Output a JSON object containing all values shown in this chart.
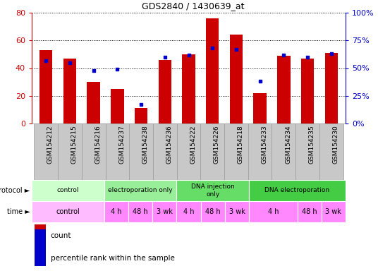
{
  "title": "GDS2840 / 1430639_at",
  "samples": [
    "GSM154212",
    "GSM154215",
    "GSM154216",
    "GSM154237",
    "GSM154238",
    "GSM154236",
    "GSM154222",
    "GSM154226",
    "GSM154218",
    "GSM154233",
    "GSM154234",
    "GSM154235",
    "GSM154230"
  ],
  "count_values": [
    53,
    47,
    30,
    25,
    11,
    46,
    50,
    76,
    64,
    22,
    49,
    47,
    51
  ],
  "percentile_values": [
    57,
    55,
    48,
    49,
    17,
    60,
    62,
    68,
    67,
    38,
    62,
    60,
    63
  ],
  "ylim_left": [
    0,
    80
  ],
  "ylim_right": [
    0,
    100
  ],
  "yticks_left": [
    0,
    20,
    40,
    60,
    80
  ],
  "yticks_right": [
    0,
    25,
    50,
    75,
    100
  ],
  "ytick_labels_left": [
    "0",
    "20",
    "40",
    "60",
    "80"
  ],
  "ytick_labels_right": [
    "0%",
    "25%",
    "50%",
    "75%",
    "100%"
  ],
  "left_axis_color": "#cc0000",
  "right_axis_color": "#0000cc",
  "bar_color": "#cc0000",
  "dot_color": "#0000cc",
  "bg_color": "#ffffff",
  "tick_bg": "#c8c8c8",
  "protocol_row": [
    {
      "label": "control",
      "span": [
        0,
        3
      ],
      "color": "#ccffcc"
    },
    {
      "label": "electroporation only",
      "span": [
        3,
        6
      ],
      "color": "#99ee99"
    },
    {
      "label": "DNA injection\nonly",
      "span": [
        6,
        9
      ],
      "color": "#66dd66"
    },
    {
      "label": "DNA electroporation",
      "span": [
        9,
        13
      ],
      "color": "#44cc44"
    }
  ],
  "time_row": [
    {
      "label": "control",
      "span": [
        0,
        3
      ],
      "color": "#ffbbff"
    },
    {
      "label": "4 h",
      "span": [
        3,
        4
      ],
      "color": "#ff88ff"
    },
    {
      "label": "48 h",
      "span": [
        4,
        5
      ],
      "color": "#ff88ff"
    },
    {
      "label": "3 wk",
      "span": [
        5,
        6
      ],
      "color": "#ff88ff"
    },
    {
      "label": "4 h",
      "span": [
        6,
        7
      ],
      "color": "#ff88ff"
    },
    {
      "label": "48 h",
      "span": [
        7,
        8
      ],
      "color": "#ff88ff"
    },
    {
      "label": "3 wk",
      "span": [
        8,
        9
      ],
      "color": "#ff88ff"
    },
    {
      "label": "4 h",
      "span": [
        9,
        11
      ],
      "color": "#ff88ff"
    },
    {
      "label": "48 h",
      "span": [
        11,
        12
      ],
      "color": "#ff88ff"
    },
    {
      "label": "3 wk",
      "span": [
        12,
        13
      ],
      "color": "#ff88ff"
    }
  ]
}
